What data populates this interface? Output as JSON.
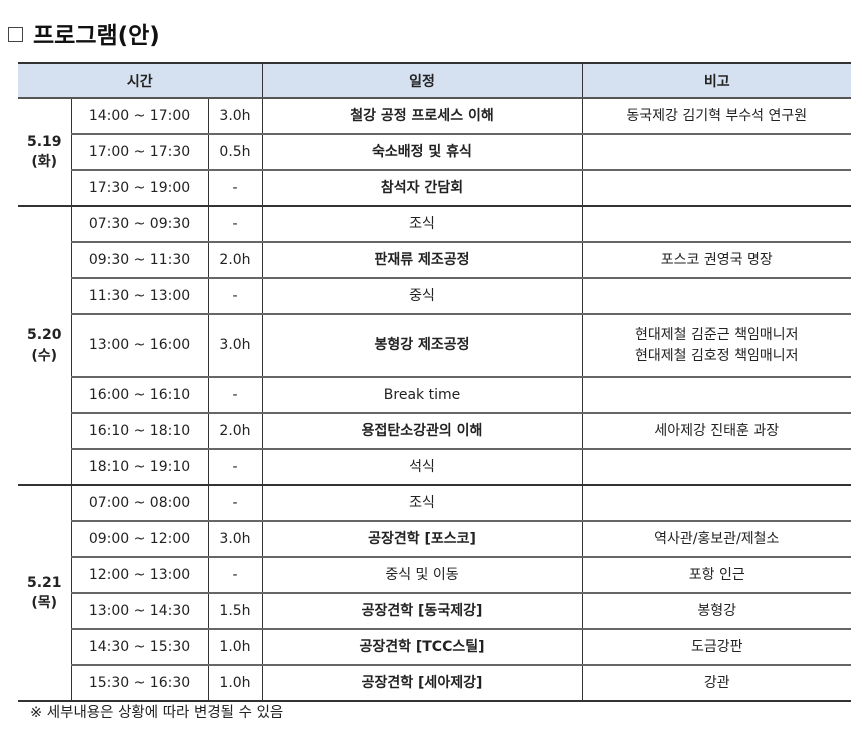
{
  "title": "프로그램(안)",
  "headers": {
    "time": "시간",
    "schedule": "일정",
    "note": "비고"
  },
  "days": [
    {
      "date": "5.19",
      "weekday": "(화)",
      "rows": [
        {
          "time": "14:00 ~ 17:00",
          "duration": "3.0h",
          "schedule": "철강 공정 프로세스 이해",
          "bold": true,
          "note": [
            "동국제강 김기혁 부수석 연구원"
          ]
        },
        {
          "time": "17:00 ~ 17:30",
          "duration": "0.5h",
          "schedule": "숙소배정 및 휴식",
          "bold": true,
          "note": []
        },
        {
          "time": "17:30 ~ 19:00",
          "duration": "-",
          "schedule": "참석자 간담회",
          "bold": true,
          "note": []
        }
      ]
    },
    {
      "date": "5.20",
      "weekday": "(수)",
      "rows": [
        {
          "time": "07:30 ~ 09:30",
          "duration": "-",
          "schedule": "조식",
          "bold": false,
          "note": []
        },
        {
          "time": "09:30 ~ 11:30",
          "duration": "2.0h",
          "schedule": "판재류 제조공정",
          "bold": true,
          "note": [
            "포스코 권영국 명장"
          ]
        },
        {
          "time": "11:30 ~ 13:00",
          "duration": "-",
          "schedule": "중식",
          "bold": false,
          "note": []
        },
        {
          "time": "13:00 ~ 16:00",
          "duration": "3.0h",
          "schedule": "봉형강 제조공정",
          "bold": true,
          "note": [
            "현대제철 김준근 책임매니저",
            "현대제철 김호정 책임매니저"
          ]
        },
        {
          "time": "16:00 ~ 16:10",
          "duration": "-",
          "schedule": "Break time",
          "bold": false,
          "note": []
        },
        {
          "time": "16:10 ~ 18:10",
          "duration": "2.0h",
          "schedule": "용접탄소강관의 이해",
          "bold": true,
          "note": [
            "세아제강 진태훈 과장"
          ]
        },
        {
          "time": "18:10 ~ 19:10",
          "duration": "-",
          "schedule": "석식",
          "bold": false,
          "note": []
        }
      ]
    },
    {
      "date": "5.21",
      "weekday": "(목)",
      "rows": [
        {
          "time": "07:00 ~ 08:00",
          "duration": "-",
          "schedule": "조식",
          "bold": false,
          "note": []
        },
        {
          "time": "09:00 ~ 12:00",
          "duration": "3.0h",
          "schedule": "공장견학 [포스코]",
          "bold": true,
          "note": [
            "역사관/홍보관/제철소"
          ]
        },
        {
          "time": "12:00 ~ 13:00",
          "duration": "-",
          "schedule": "중식 및 이동",
          "bold": false,
          "note": [
            "포항 인근"
          ]
        },
        {
          "time": "13:00 ~ 14:30",
          "duration": "1.5h",
          "schedule": "공장견학 [동국제강]",
          "bold": true,
          "note": [
            "봉형강"
          ]
        },
        {
          "time": "14:30 ~ 15:30",
          "duration": "1.0h",
          "schedule": "공장견학 [TCC스틸]",
          "bold": true,
          "note": [
            "도금강판"
          ]
        },
        {
          "time": "15:30 ~ 16:30",
          "duration": "1.0h",
          "schedule": "공장견학 [세아제강]",
          "bold": true,
          "note": [
            "강관"
          ]
        }
      ]
    }
  ],
  "footnote": "※ 세부내용은 상황에 따라 변경될 수 있음",
  "colors": {
    "header_bg": "#d5e1f0"
  }
}
